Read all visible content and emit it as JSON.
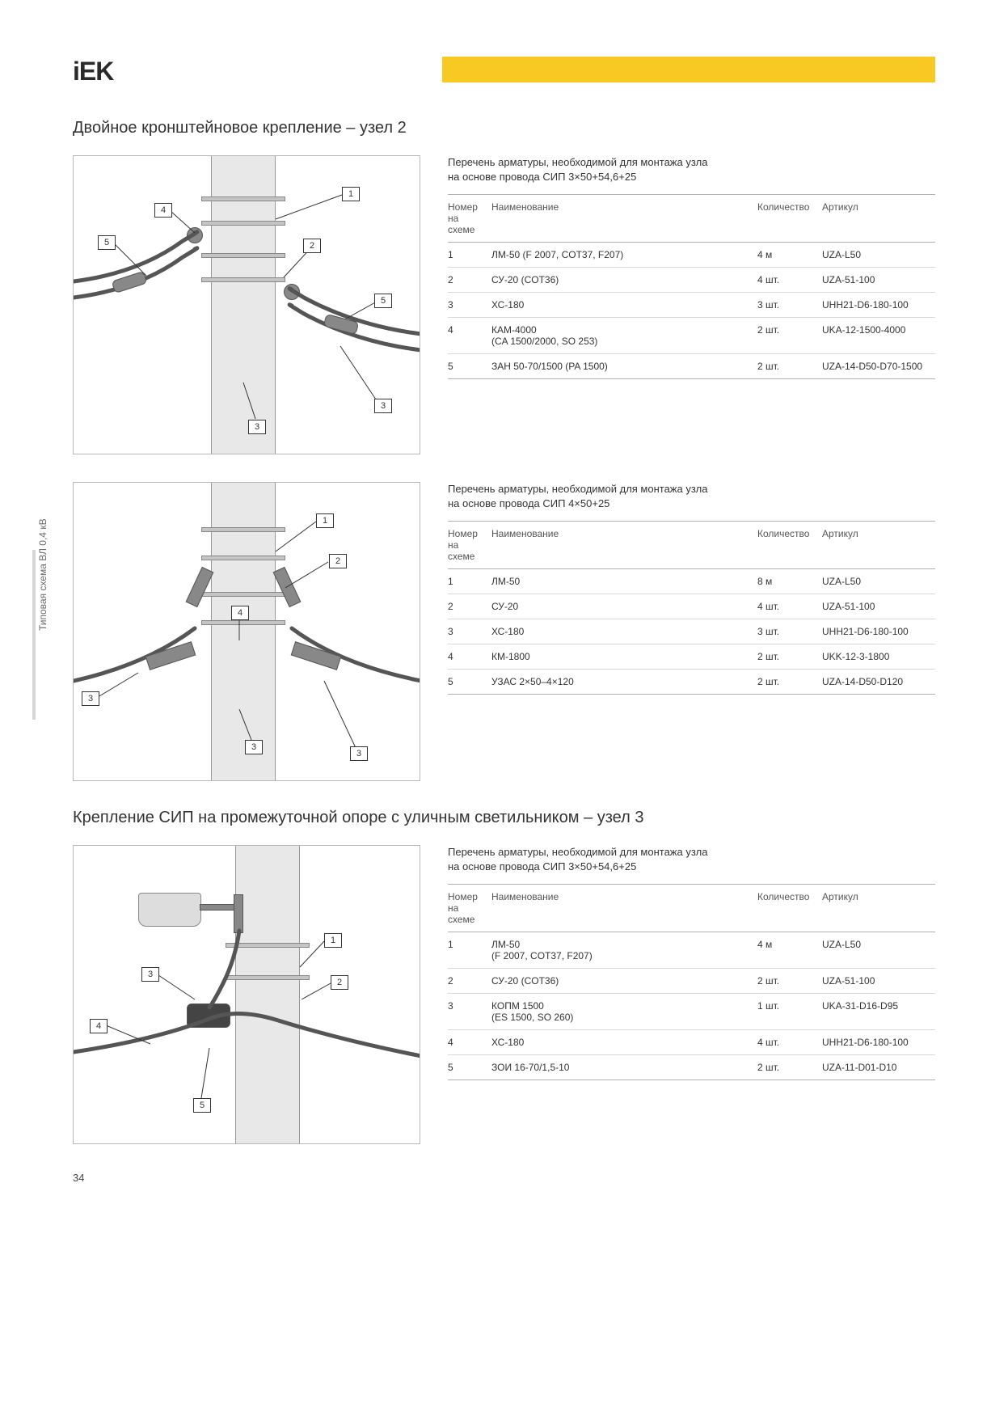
{
  "brand": "iEK",
  "side_label": "Типовая схема ВЛ 0,4 кВ",
  "page_number": "34",
  "section1_title": "Двойное кронштейновое крепление – узел 2",
  "section2_title": "Крепление СИП на промежуточной опоре с уличным светильником – узел 3",
  "table_header": {
    "num": "Номер на схеме",
    "name": "Наименование",
    "qty": "Количество",
    "art": "Артикул"
  },
  "block1": {
    "caption_l1": "Перечень арматуры, необходимой для монтажа узла",
    "caption_l2": "на основе провода СИП 3×50+54,6+25",
    "rows": [
      {
        "n": "1",
        "name": "ЛМ-50 (F 2007, COT37, F207)",
        "qty": "4 м",
        "art": "UZA-L50"
      },
      {
        "n": "2",
        "name": "СУ-20 (COT36)",
        "qty": "4 шт.",
        "art": "UZA-51-100"
      },
      {
        "n": "3",
        "name": "ХС-180",
        "qty": "3 шт.",
        "art": "UHH21-D6-180-100"
      },
      {
        "n": "4",
        "name": "КАМ-4000\n(CA 1500/2000, SO 253)",
        "qty": "2 шт.",
        "art": "UKA-12-1500-4000"
      },
      {
        "n": "5",
        "name": "ЗАН 50-70/1500 (PA 1500)",
        "qty": "2 шт.",
        "art": "UZA-14-D50-D70-1500"
      }
    ],
    "callouts": [
      "1",
      "2",
      "3",
      "3",
      "4",
      "5",
      "5"
    ]
  },
  "block2": {
    "caption_l1": "Перечень арматуры, необходимой для монтажа узла",
    "caption_l2": "на основе провода СИП 4×50+25",
    "rows": [
      {
        "n": "1",
        "name": "ЛМ-50",
        "qty": "8 м",
        "art": "UZA-L50"
      },
      {
        "n": "2",
        "name": "СУ-20",
        "qty": "4 шт.",
        "art": "UZA-51-100"
      },
      {
        "n": "3",
        "name": "ХС-180",
        "qty": "3 шт.",
        "art": "UHH21-D6-180-100"
      },
      {
        "n": "4",
        "name": "КМ-1800",
        "qty": "2 шт.",
        "art": "UKK-12-3-1800"
      },
      {
        "n": "5",
        "name": "УЗАС 2×50–4×120",
        "qty": "2 шт.",
        "art": "UZA-14-D50-D120"
      }
    ],
    "callouts": [
      "1",
      "2",
      "3",
      "3",
      "3",
      "4"
    ]
  },
  "block3": {
    "caption_l1": "Перечень арматуры, необходимой для монтажа узла",
    "caption_l2": "на основе провода СИП 3×50+54,6+25",
    "rows": [
      {
        "n": "1",
        "name": "ЛМ-50\n(F 2007, COT37, F207)",
        "qty": "4 м",
        "art": "UZA-L50"
      },
      {
        "n": "2",
        "name": "СУ-20 (COT36)",
        "qty": "2 шт.",
        "art": "UZA-51-100"
      },
      {
        "n": "3",
        "name": "КОПМ 1500\n(ES 1500, SO 260)",
        "qty": "1 шт.",
        "art": "UKA-31-D16-D95"
      },
      {
        "n": "4",
        "name": "ХС-180",
        "qty": "4 шт.",
        "art": "UHH21-D6-180-100"
      },
      {
        "n": "5",
        "name": "ЗОИ 16-70/1,5-10",
        "qty": "2 шт.",
        "art": "UZA-11-D01-D10"
      }
    ],
    "callouts": [
      "1",
      "2",
      "3",
      "4",
      "5"
    ]
  }
}
